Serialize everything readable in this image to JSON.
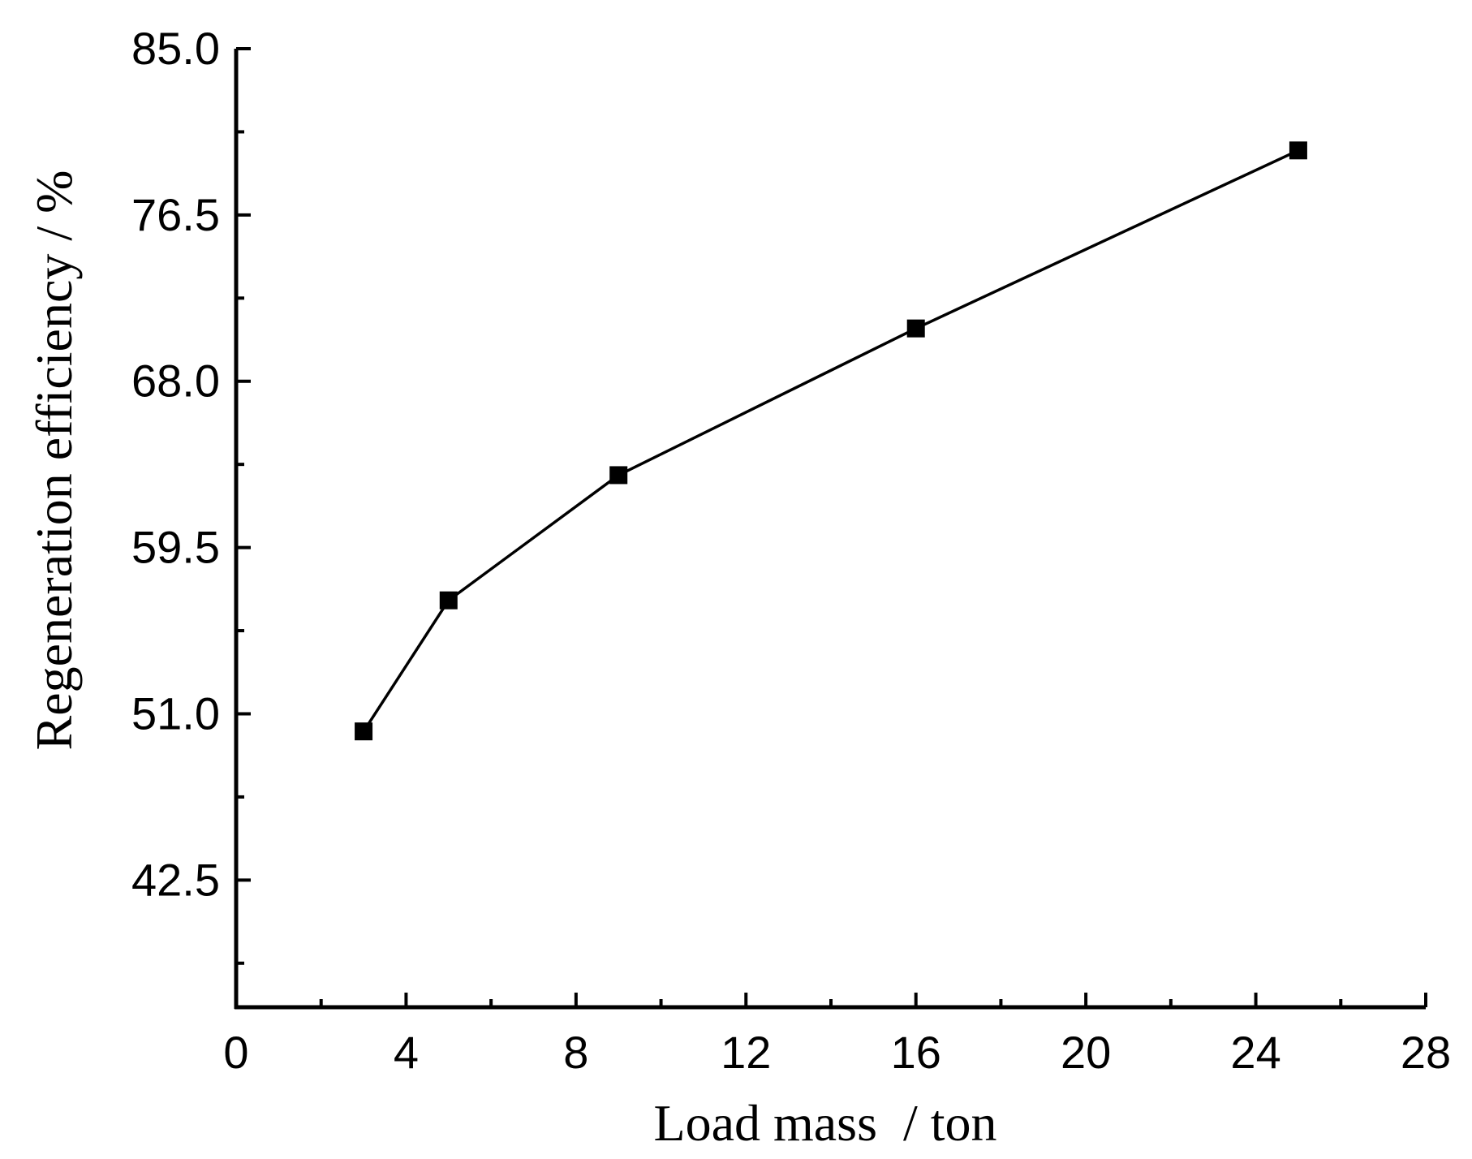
{
  "chart_data": {
    "type": "line",
    "title": "",
    "xlabel": "Load mass  / ton",
    "ylabel": "Regeneration efficiency / %",
    "xlim": [
      0,
      28
    ],
    "ylim": [
      36,
      85
    ],
    "x_ticks": [
      "0",
      "4",
      "8",
      "12",
      "16",
      "20",
      "24",
      "28"
    ],
    "y_ticks": [
      "85.0",
      "76.5",
      "68.0",
      "59.5",
      "51.0",
      "42.5"
    ],
    "grid": false,
    "legend": "none",
    "marker": "square",
    "series": [
      {
        "x": [
          3,
          5,
          9,
          16,
          25
        ],
        "y": [
          50.1,
          56.8,
          63.2,
          70.7,
          79.8
        ]
      }
    ],
    "colors": {
      "line": "#000000",
      "marker": "#000000",
      "axis": "#000000"
    }
  }
}
